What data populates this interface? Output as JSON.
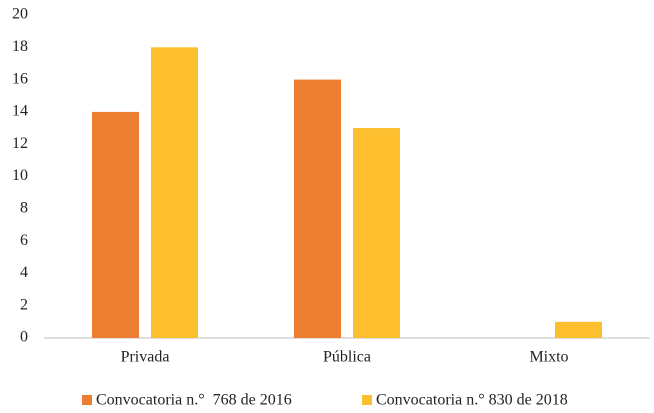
{
  "chart_data": {
    "type": "bar",
    "categories": [
      "Privada",
      "Pública",
      "Mixto"
    ],
    "series": [
      {
        "name": "Convocatoria n.°  768 de 2016",
        "color": "#ed7d31",
        "values": [
          14,
          16,
          0
        ]
      },
      {
        "name": "Convocatoria n.° 830 de 2018",
        "color": "#fdbf2d",
        "values": [
          18,
          13,
          1
        ]
      }
    ],
    "ylim": [
      0,
      20
    ],
    "yticks": [
      0,
      2,
      4,
      6,
      8,
      10,
      12,
      14,
      16,
      18,
      20
    ],
    "grid": false,
    "legend": "bottom"
  }
}
